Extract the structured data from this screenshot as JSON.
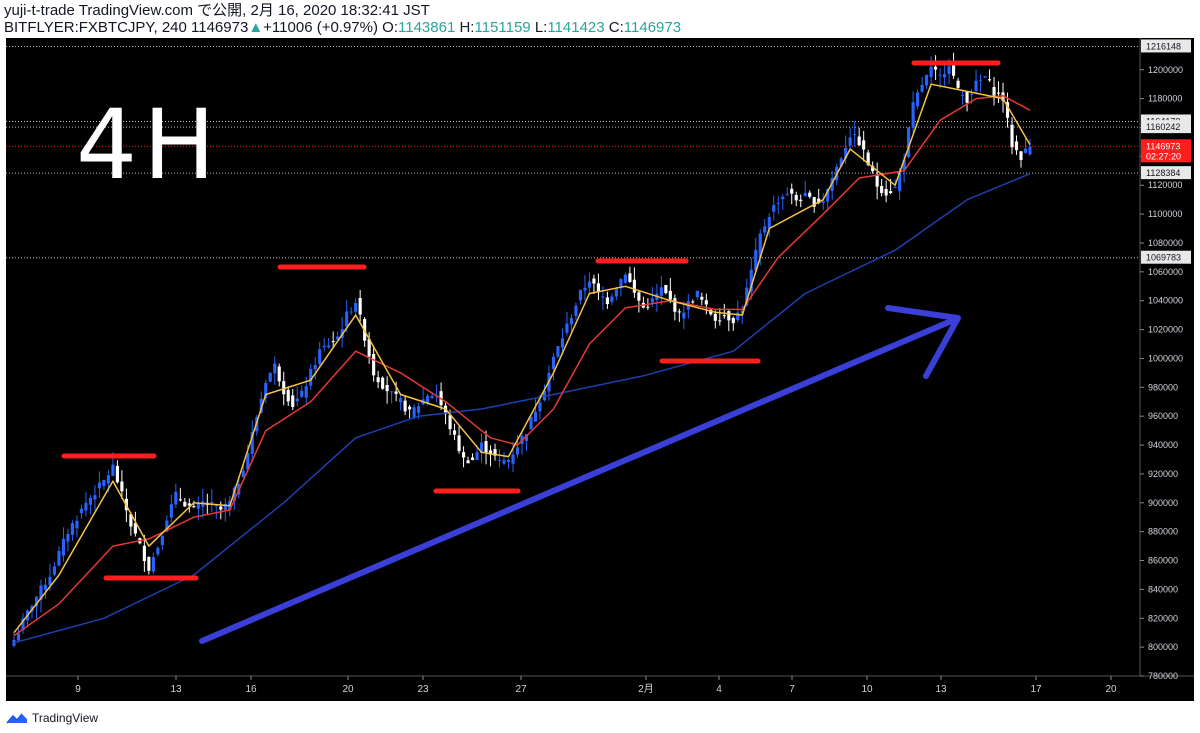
{
  "header": {
    "line1": "yuji-t-trade TradingView.com で公開, 2月 16, 2020 18:32:41 JST",
    "symbol": "BITFLYER:FXBTCJPY, 240",
    "last": "1146973",
    "change_arrow": "▲",
    "change": "+11006 (+0.97%)",
    "o_label": "O:",
    "o": "1143861",
    "h_label": "H:",
    "h": "1151159",
    "l_label": "L:",
    "l": "1141423",
    "c_label": "C:",
    "c": "1146973"
  },
  "annotation_text": "4H",
  "footer": {
    "brand": "TradingView",
    "logo_icon": "tradingview-logo-icon"
  },
  "colors": {
    "background": "#000000",
    "up": "#2962ff",
    "down": "#ffffff",
    "ma_fast": "#f5c242",
    "ma_mid": "#e53935",
    "ma_slow": "#1e40af",
    "annot_red": "#ff1e1e",
    "annot_arrow": "#3a3fd8",
    "current_price": "#ff1e1e"
  },
  "chart_data": {
    "type": "candlestick",
    "y_unit": "JPY",
    "x_tick_labels": [
      "9",
      "13",
      "16",
      "20",
      "23",
      "27",
      "2月",
      "4",
      "7",
      "10",
      "13",
      "17",
      "20"
    ],
    "y_tick_labels": [
      "780000",
      "800000",
      "820000",
      "840000",
      "860000",
      "880000",
      "900000",
      "920000",
      "940000",
      "960000",
      "980000",
      "1000000",
      "1020000",
      "1040000",
      "1060000",
      "1080000",
      "1100000",
      "1120000",
      "1140000",
      "1160000",
      "1180000",
      "1200000"
    ],
    "ylim": [
      780000,
      1222000
    ],
    "price_labels": [
      {
        "value": 1216148,
        "text": "1216148",
        "style": "white"
      },
      {
        "value": 1164173,
        "text": "1164173",
        "style": "white"
      },
      {
        "value": 1160242,
        "text": "1160242",
        "style": "white"
      },
      {
        "value": 1146973,
        "text": "1146973",
        "style": "red"
      },
      {
        "value": 1140000,
        "text": "02:27:20",
        "style": "red"
      },
      {
        "value": 1128384,
        "text": "1128384",
        "style": "white"
      },
      {
        "value": 1069783,
        "text": "1069783",
        "style": "white"
      }
    ],
    "close_path": [
      [
        0,
        805000
      ],
      [
        4,
        830000
      ],
      [
        8,
        850000
      ],
      [
        12,
        880000
      ],
      [
        16,
        900000
      ],
      [
        20,
        915000
      ],
      [
        22,
        925000
      ],
      [
        24,
        905000
      ],
      [
        26,
        885000
      ],
      [
        28,
        870000
      ],
      [
        30,
        855000
      ],
      [
        32,
        870000
      ],
      [
        34,
        890000
      ],
      [
        36,
        905000
      ],
      [
        38,
        900000
      ],
      [
        40,
        895000
      ],
      [
        42,
        900000
      ],
      [
        44,
        898000
      ],
      [
        46,
        895000
      ],
      [
        48,
        900000
      ],
      [
        50,
        915000
      ],
      [
        52,
        935000
      ],
      [
        54,
        960000
      ],
      [
        56,
        985000
      ],
      [
        58,
        995000
      ],
      [
        60,
        978000
      ],
      [
        62,
        968000
      ],
      [
        64,
        975000
      ],
      [
        66,
        990000
      ],
      [
        68,
        1005000
      ],
      [
        70,
        1010000
      ],
      [
        72,
        1015000
      ],
      [
        74,
        1030000
      ],
      [
        76,
        1040000
      ],
      [
        78,
        1015000
      ],
      [
        80,
        990000
      ],
      [
        82,
        982000
      ],
      [
        84,
        975000
      ],
      [
        86,
        970000
      ],
      [
        88,
        962000
      ],
      [
        90,
        968000
      ],
      [
        92,
        975000
      ],
      [
        94,
        975000
      ],
      [
        96,
        960000
      ],
      [
        98,
        945000
      ],
      [
        100,
        930000
      ],
      [
        102,
        930000
      ],
      [
        104,
        940000
      ],
      [
        106,
        935000
      ],
      [
        108,
        928000
      ],
      [
        110,
        930000
      ],
      [
        112,
        940000
      ],
      [
        114,
        950000
      ],
      [
        116,
        965000
      ],
      [
        118,
        980000
      ],
      [
        120,
        1000000
      ],
      [
        122,
        1015000
      ],
      [
        124,
        1030000
      ],
      [
        126,
        1045000
      ],
      [
        128,
        1055000
      ],
      [
        130,
        1045000
      ],
      [
        132,
        1040000
      ],
      [
        134,
        1050000
      ],
      [
        136,
        1060000
      ],
      [
        138,
        1045000
      ],
      [
        140,
        1035000
      ],
      [
        142,
        1040000
      ],
      [
        144,
        1048000
      ],
      [
        146,
        1040000
      ],
      [
        148,
        1030000
      ],
      [
        150,
        1038000
      ],
      [
        152,
        1045000
      ],
      [
        154,
        1035000
      ],
      [
        156,
        1028000
      ],
      [
        158,
        1030000
      ],
      [
        160,
        1027000
      ],
      [
        162,
        1035000
      ],
      [
        164,
        1060000
      ],
      [
        166,
        1085000
      ],
      [
        168,
        1100000
      ],
      [
        170,
        1110000
      ],
      [
        172,
        1115000
      ],
      [
        174,
        1110000
      ],
      [
        176,
        1112000
      ],
      [
        178,
        1108000
      ],
      [
        180,
        1110000
      ],
      [
        182,
        1125000
      ],
      [
        184,
        1140000
      ],
      [
        186,
        1155000
      ],
      [
        188,
        1150000
      ],
      [
        190,
        1135000
      ],
      [
        192,
        1120000
      ],
      [
        194,
        1115000
      ],
      [
        196,
        1118000
      ],
      [
        198,
        1140000
      ],
      [
        200,
        1175000
      ],
      [
        202,
        1190000
      ],
      [
        204,
        1200000
      ],
      [
        206,
        1195000
      ],
      [
        208,
        1205000
      ],
      [
        210,
        1185000
      ],
      [
        212,
        1180000
      ],
      [
        214,
        1190000
      ],
      [
        216,
        1195000
      ],
      [
        218,
        1185000
      ],
      [
        220,
        1180000
      ],
      [
        222,
        1148000
      ],
      [
        224,
        1140000
      ],
      [
        226,
        1147000
      ]
    ],
    "ma_fast_path": [
      [
        0,
        810000
      ],
      [
        10,
        850000
      ],
      [
        22,
        915000
      ],
      [
        30,
        870000
      ],
      [
        40,
        900000
      ],
      [
        48,
        898000
      ],
      [
        56,
        975000
      ],
      [
        66,
        985000
      ],
      [
        76,
        1030000
      ],
      [
        86,
        975000
      ],
      [
        96,
        965000
      ],
      [
        104,
        935000
      ],
      [
        110,
        932000
      ],
      [
        120,
        990000
      ],
      [
        128,
        1045000
      ],
      [
        136,
        1050000
      ],
      [
        146,
        1040000
      ],
      [
        156,
        1032000
      ],
      [
        162,
        1030000
      ],
      [
        168,
        1090000
      ],
      [
        180,
        1110000
      ],
      [
        186,
        1145000
      ],
      [
        196,
        1120000
      ],
      [
        204,
        1190000
      ],
      [
        212,
        1185000
      ],
      [
        220,
        1180000
      ],
      [
        226,
        1148000
      ]
    ],
    "ma_mid_path": [
      [
        0,
        808000
      ],
      [
        10,
        830000
      ],
      [
        22,
        870000
      ],
      [
        30,
        875000
      ],
      [
        40,
        890000
      ],
      [
        48,
        895000
      ],
      [
        56,
        950000
      ],
      [
        66,
        970000
      ],
      [
        76,
        1005000
      ],
      [
        86,
        990000
      ],
      [
        96,
        970000
      ],
      [
        106,
        945000
      ],
      [
        112,
        940000
      ],
      [
        120,
        965000
      ],
      [
        128,
        1010000
      ],
      [
        136,
        1035000
      ],
      [
        146,
        1040000
      ],
      [
        156,
        1034000
      ],
      [
        162,
        1034000
      ],
      [
        170,
        1070000
      ],
      [
        180,
        1100000
      ],
      [
        188,
        1125000
      ],
      [
        198,
        1130000
      ],
      [
        206,
        1165000
      ],
      [
        214,
        1180000
      ],
      [
        220,
        1182000
      ],
      [
        226,
        1172000
      ]
    ],
    "ma_slow_path": [
      [
        0,
        803000
      ],
      [
        20,
        820000
      ],
      [
        40,
        850000
      ],
      [
        60,
        900000
      ],
      [
        76,
        945000
      ],
      [
        90,
        960000
      ],
      [
        104,
        965000
      ],
      [
        120,
        975000
      ],
      [
        140,
        988000
      ],
      [
        160,
        1005000
      ],
      [
        176,
        1045000
      ],
      [
        196,
        1075000
      ],
      [
        212,
        1110000
      ],
      [
        226,
        1128000
      ]
    ],
    "index_count": 227
  }
}
